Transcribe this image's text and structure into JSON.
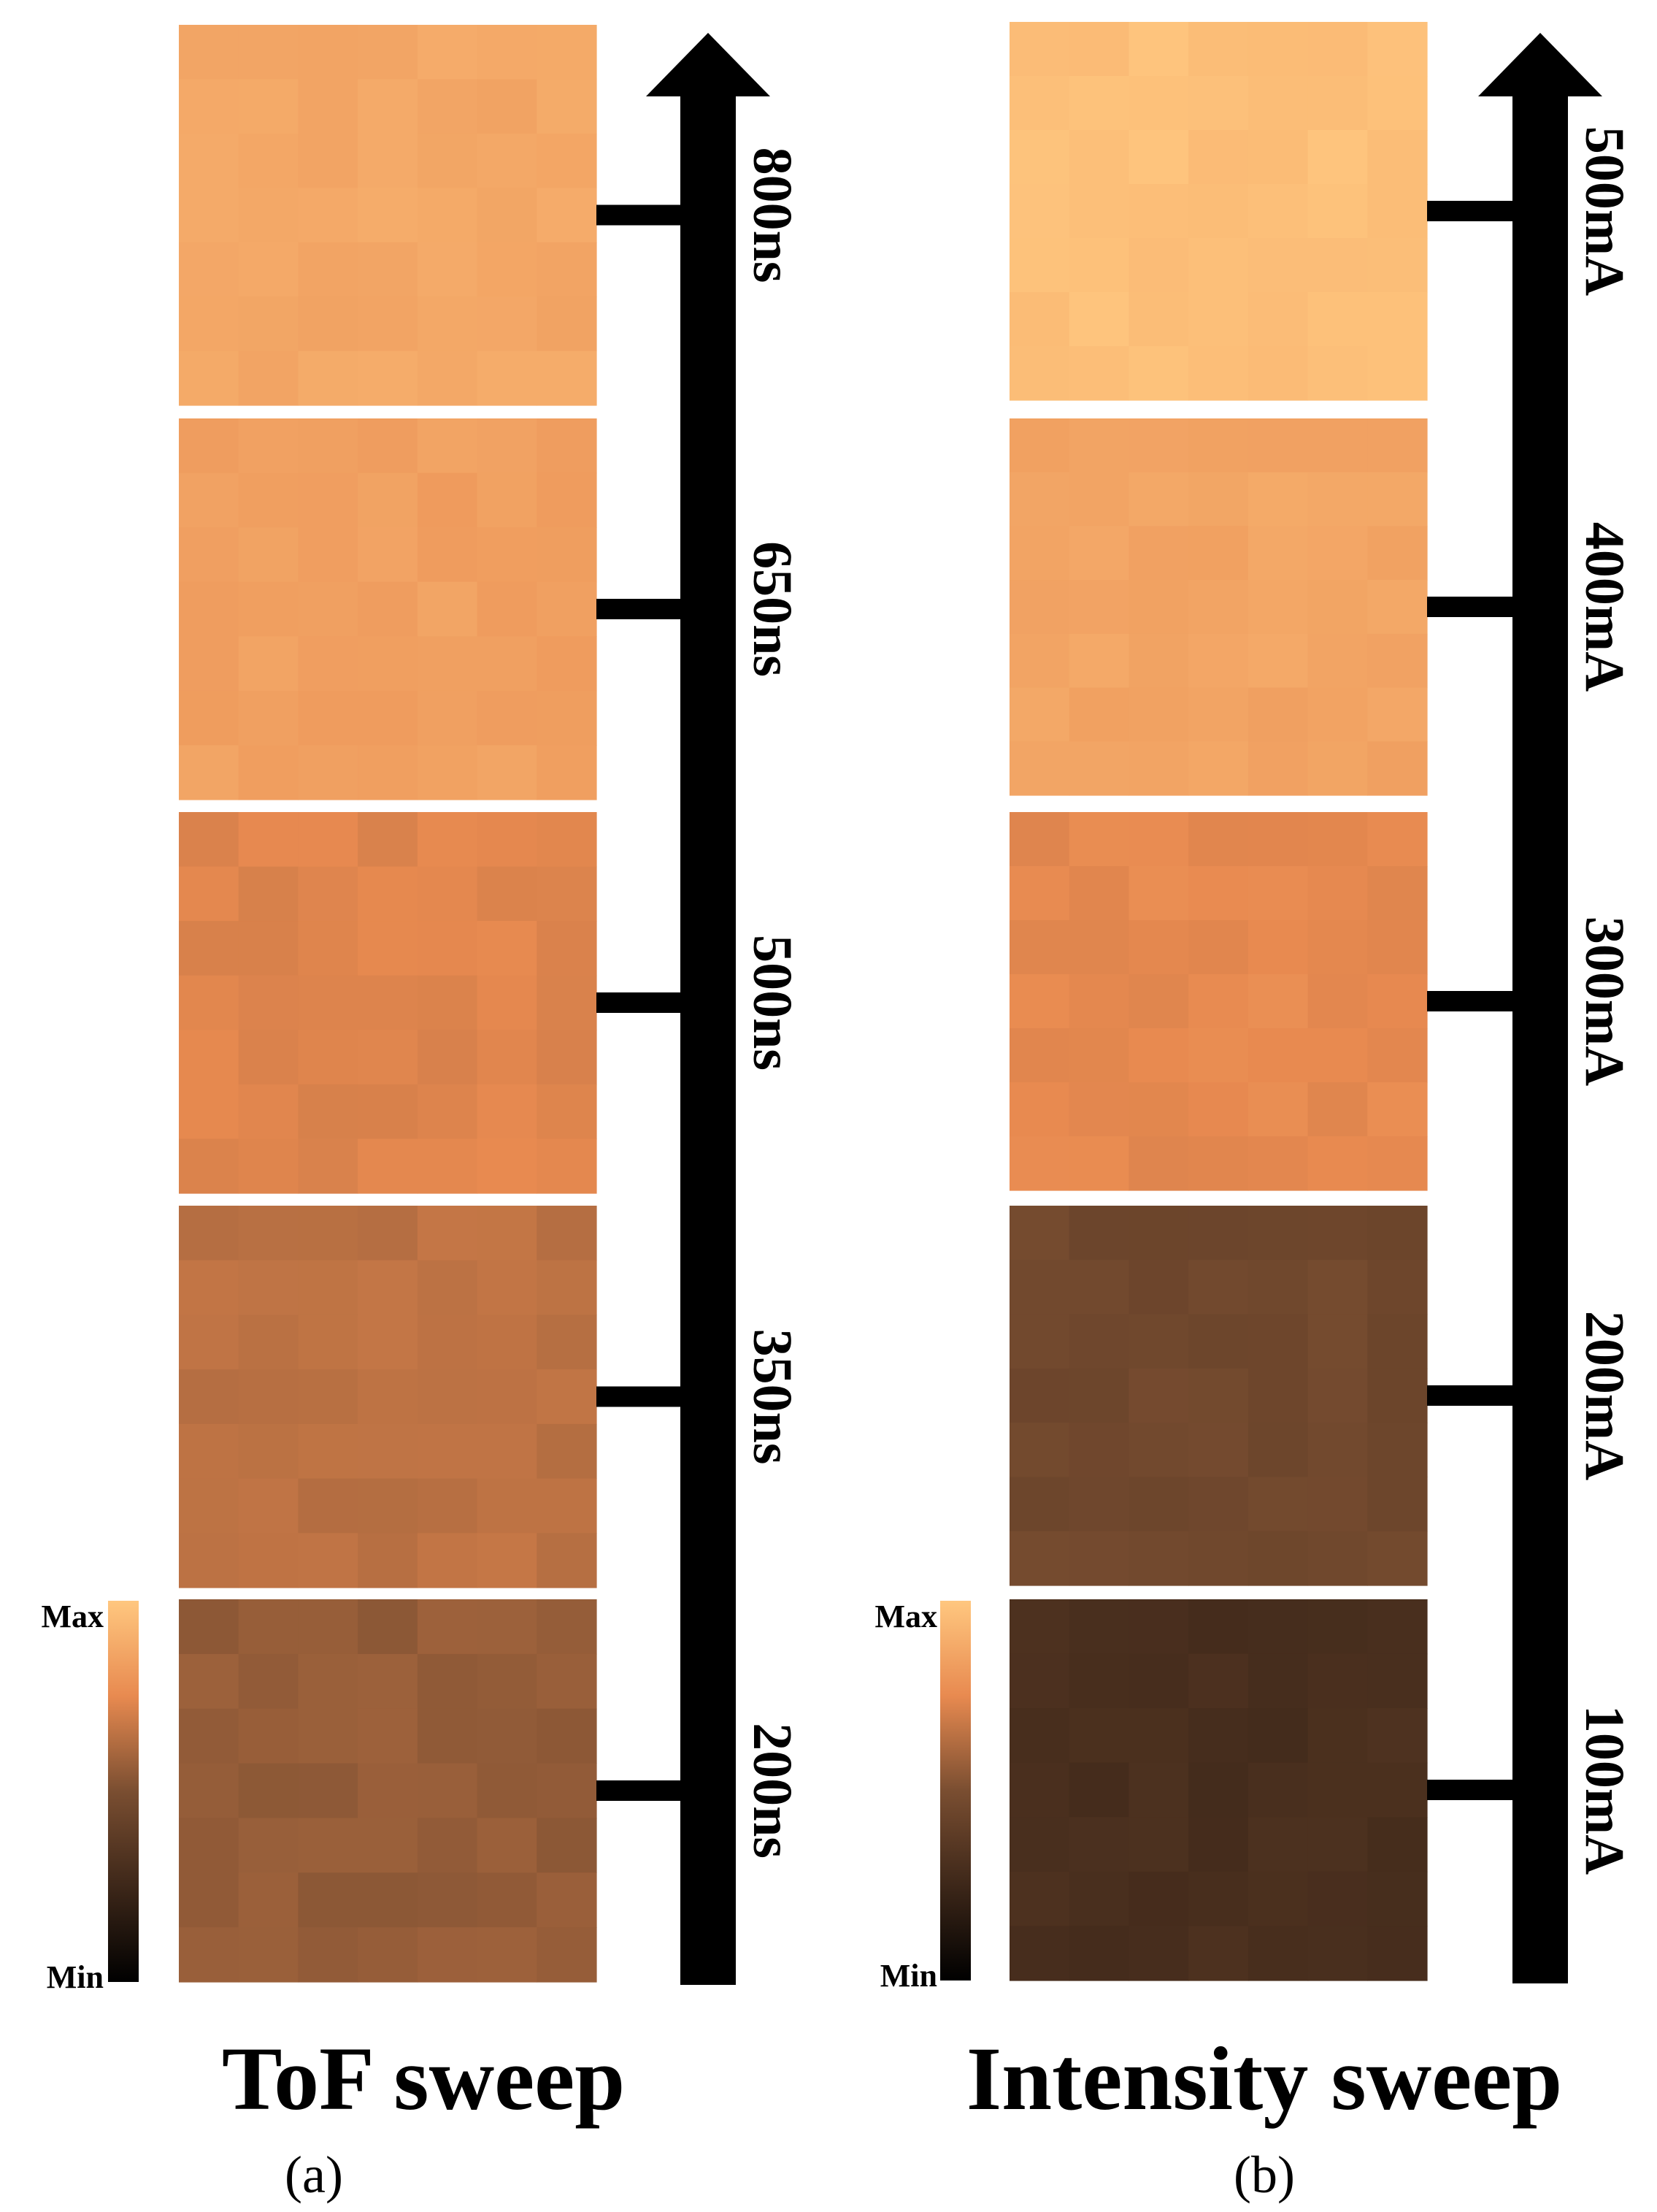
{
  "chart_data": [
    {
      "type": "heatmap",
      "title": "ToF sweep",
      "panel_label": "(a)",
      "axis_direction": "increasing-upward",
      "steps_bottom_to_top": [
        "200ns",
        "350ns",
        "500ns",
        "650ns",
        "800ns"
      ],
      "grid_size": [
        7,
        7
      ],
      "relative_intensity_bottom_to_top": [
        0.56,
        0.65,
        0.73,
        0.84,
        0.87
      ],
      "colorbar": {
        "max_label": "Max",
        "min_label": "Min",
        "colormap": "copper"
      }
    },
    {
      "type": "heatmap",
      "title": "Intensity sweep",
      "panel_label": "(b)",
      "axis_direction": "increasing-upward",
      "steps_bottom_to_top": [
        "100mA",
        "200mA",
        "300mA",
        "400mA",
        "500mA"
      ],
      "grid_size": [
        7,
        7
      ],
      "relative_intensity_bottom_to_top": [
        0.3,
        0.46,
        0.75,
        0.86,
        0.97
      ],
      "colorbar": {
        "max_label": "Max",
        "min_label": "Min",
        "colormap": "copper"
      }
    }
  ],
  "colors": {
    "axis_arrow": "#000000",
    "background": "#ffffff"
  }
}
